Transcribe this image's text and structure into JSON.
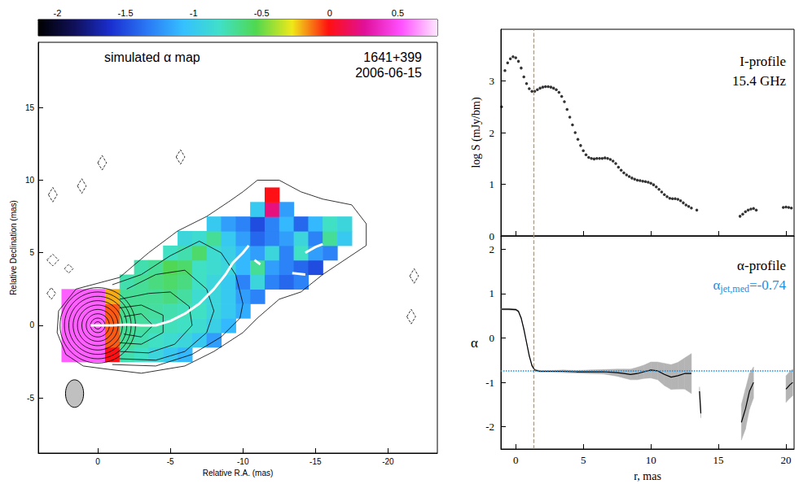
{
  "chart_data": [
    {
      "type": "map",
      "title": "simulated α map",
      "source": "1641+399",
      "date": "2006-06-15",
      "xlabel": "Relative R.A. (mas)",
      "ylabel": "Relative Declination (mas)",
      "xlim": [
        4.1,
        -23.4
      ],
      "ylim": [
        -8.8,
        19.5
      ],
      "xticks": [
        0,
        -5,
        -10,
        -15,
        -20
      ],
      "yticks": [
        -5,
        0,
        5,
        10,
        15
      ],
      "colorbar": {
        "lim": [
          -2.14,
          0.79
        ],
        "ticks": [
          -2,
          -1.5,
          -1,
          -0.5,
          0,
          0.5
        ],
        "colors": [
          "#000000",
          "#10105a",
          "#1a2fd0",
          "#2a78f5",
          "#35c0ff",
          "#40e0c8",
          "#50d850",
          "#f0e818",
          "#ff1010",
          "#e0109a",
          "#ff50ff",
          "#ffe8ff"
        ]
      },
      "cell": 1,
      "alpha_rows": [
        {
          "y": -2,
          "x": 2,
          "values": [
            0.55,
            0.55,
            0.55,
            0.0,
            -0.75,
            -0.8,
            -0.9,
            -1.0,
            -1.1
          ]
        },
        {
          "y": -1,
          "x": 2,
          "values": [
            0.55,
            0.55,
            0.55,
            -0.1,
            -0.7,
            -0.75,
            -0.8,
            -0.85,
            -0.9,
            -1.0,
            -1.2
          ]
        },
        {
          "y": 0,
          "x": 2,
          "values": [
            0.55,
            0.55,
            0.55,
            -0.1,
            -0.7,
            -0.72,
            -0.75,
            -0.78,
            -0.8,
            -0.85,
            -0.95,
            -1.1
          ]
        },
        {
          "y": 1,
          "x": 2,
          "values": [
            0.55,
            0.55,
            0.55,
            -0.1,
            -0.68,
            -0.7,
            -0.72,
            -0.75,
            -0.78,
            -0.8,
            -0.9,
            -1.0,
            -1.15
          ]
        },
        {
          "y": 2,
          "x": 2,
          "values": [
            0.55,
            0.55,
            0.55,
            -0.2,
            -0.7,
            -0.7,
            -0.7,
            -0.65,
            -0.72,
            -0.85,
            -0.9,
            -1.0,
            -1.2,
            -1.3
          ]
        },
        {
          "y": 3,
          "x": -2,
          "values": [
            -0.75,
            -0.7,
            -0.65,
            -0.6,
            -0.65,
            -0.8,
            -0.9,
            -1.0,
            -1.3,
            -0.9,
            -1.3,
            -1.4,
            -1.3
          ]
        },
        {
          "y": 4,
          "x": -3,
          "values": [
            -0.75,
            -0.7,
            -0.55,
            -0.6,
            -0.8,
            -0.85,
            -0.9,
            -1.1,
            -0.7,
            -1.2,
            -1.3,
            -1.4,
            -1.5
          ]
        },
        {
          "y": 5,
          "x": -5,
          "values": [
            -0.8,
            -0.75,
            -0.6,
            -0.85,
            -0.95,
            -1.1,
            -1.2,
            -0.9,
            -1.3,
            -0.8,
            -1.2,
            -1.3
          ]
        },
        {
          "y": 6,
          "x": -6,
          "values": [
            -0.9,
            -0.85,
            -0.7,
            -1.0,
            -1.2,
            -1.4,
            -1.3,
            -1.2,
            -0.9,
            -1.3,
            -0.7,
            -1.0
          ]
        },
        {
          "y": 7,
          "x": -8,
          "values": [
            -1.0,
            -1.2,
            -1.3,
            -1.5,
            -1.3,
            -1.1,
            -1.4,
            -1.1,
            -0.8,
            -0.9
          ]
        },
        {
          "y": 8,
          "x": -11,
          "values": [
            -1.0,
            0.2,
            -1.2
          ]
        },
        {
          "y": 9,
          "x": -12,
          "values": [
            0.0
          ]
        }
      ],
      "contours": [
        [
          [
            -0.5,
            -3
          ],
          [
            -3,
            -3.3
          ],
          [
            -6,
            -2.8
          ],
          [
            -8,
            -1.8
          ],
          [
            -10,
            -0.5
          ],
          [
            -11,
            0.5
          ],
          [
            -12.5,
            1.8
          ],
          [
            -14,
            2.3
          ],
          [
            -15.5,
            3.5
          ],
          [
            -17,
            4.5
          ],
          [
            -18.5,
            5.5
          ],
          [
            -18.5,
            7
          ],
          [
            -17.5,
            8.3
          ],
          [
            -15.5,
            8.7
          ],
          [
            -14,
            9.2
          ],
          [
            -12.5,
            10
          ],
          [
            -11,
            10
          ],
          [
            -10,
            9.2
          ],
          [
            -9,
            8.5
          ],
          [
            -7.5,
            7.5
          ],
          [
            -5.5,
            6.5
          ],
          [
            -3.5,
            5
          ],
          [
            -1.5,
            3.3
          ],
          [
            0,
            2.9
          ],
          [
            1.5,
            2.5
          ],
          [
            2.7,
            1
          ],
          [
            2.8,
            -0.5
          ],
          [
            2.2,
            -2
          ],
          [
            1,
            -2.8
          ],
          [
            -0.5,
            -3
          ]
        ],
        [
          [
            -1,
            -2.7
          ],
          [
            -4,
            -2.8
          ],
          [
            -6.5,
            -2
          ],
          [
            -8.5,
            -0.8
          ],
          [
            -9.8,
            0.5
          ],
          [
            -10,
            1.5
          ],
          [
            -9.5,
            3.5
          ],
          [
            -8.5,
            5
          ],
          [
            -7,
            5.8
          ],
          [
            -5,
            4.8
          ],
          [
            -3,
            3.5
          ],
          [
            -1,
            2.8
          ]
        ],
        [
          [
            -1.5,
            -2.3
          ],
          [
            -4,
            -2.4
          ],
          [
            -6,
            -1.8
          ],
          [
            -7.5,
            -0.5
          ],
          [
            -8,
            1
          ],
          [
            -7.5,
            2.5
          ],
          [
            -6,
            3.8
          ],
          [
            -4,
            3.5
          ],
          [
            -2,
            2.5
          ]
        ],
        [
          [
            -1.5,
            -1.8
          ],
          [
            -3.5,
            -1.9
          ],
          [
            -5.3,
            -1.3
          ],
          [
            -6.5,
            0
          ],
          [
            -6.3,
            1.3
          ],
          [
            -5,
            2.3
          ],
          [
            -3.5,
            2.2
          ],
          [
            -1.5,
            1.8
          ]
        ],
        [
          [
            -1.5,
            -1.2
          ],
          [
            -3,
            -1.3
          ],
          [
            -4.5,
            -0.5
          ],
          [
            -4.5,
            0.7
          ],
          [
            -3,
            1.4
          ],
          [
            -1.5,
            1.2
          ]
        ],
        [
          [
            -1.8,
            -0.6
          ],
          [
            -3,
            -0.8
          ],
          [
            -3.8,
            0
          ],
          [
            -3,
            0.8
          ],
          [
            -1.8,
            0.6
          ]
        ]
      ],
      "core_center": [
        0,
        0
      ],
      "core_contour_radii": [
        2.6,
        2.3,
        2.0,
        1.7,
        1.4,
        1.1,
        0.8,
        0.5,
        0.25
      ],
      "negative_contours": [
        [
          [
            3.5,
            4.5
          ],
          [
            3.1,
            4.9
          ],
          [
            2.7,
            4.5
          ],
          [
            3.1,
            4.1
          ],
          [
            3.5,
            4.5
          ]
        ],
        [
          [
            2.3,
            3.9
          ],
          [
            2.0,
            4.2
          ],
          [
            1.7,
            3.9
          ],
          [
            2.0,
            3.6
          ],
          [
            2.3,
            3.9
          ]
        ],
        [
          [
            3.5,
            2.2
          ],
          [
            3.2,
            2.6
          ],
          [
            2.9,
            2.2
          ],
          [
            3.2,
            1.8
          ],
          [
            3.5,
            2.2
          ]
        ],
        [
          [
            3.4,
            9
          ],
          [
            3.1,
            9.5
          ],
          [
            2.8,
            9
          ],
          [
            3.1,
            8.5
          ],
          [
            3.4,
            9
          ]
        ],
        [
          [
            1.4,
            9.6
          ],
          [
            1.1,
            10.1
          ],
          [
            0.8,
            9.6
          ],
          [
            1.1,
            9.1
          ],
          [
            1.4,
            9.6
          ]
        ],
        [
          [
            0,
            11.2
          ],
          [
            -0.3,
            11.7
          ],
          [
            -0.6,
            11.2
          ],
          [
            -0.3,
            10.7
          ],
          [
            0,
            11.2
          ]
        ],
        [
          [
            -5.4,
            11.6
          ],
          [
            -5.7,
            12.1
          ],
          [
            -6,
            11.6
          ],
          [
            -5.7,
            11.1
          ],
          [
            -5.4,
            11.6
          ]
        ],
        [
          [
            -21.5,
            3.4
          ],
          [
            -21.8,
            3.9
          ],
          [
            -22.1,
            3.4
          ],
          [
            -21.8,
            2.9
          ],
          [
            -21.5,
            3.4
          ]
        ],
        [
          [
            -21.3,
            0.6
          ],
          [
            -21.6,
            1.1
          ],
          [
            -21.9,
            0.6
          ],
          [
            -21.6,
            0.1
          ],
          [
            -21.3,
            0.6
          ]
        ]
      ],
      "ridge": {
        "color": "#ffffff",
        "segments": [
          [
            [
              0.5,
              0
            ],
            [
              -1,
              0
            ],
            [
              -2,
              0.05
            ],
            [
              -3,
              0
            ],
            [
              -4,
              0
            ],
            [
              -5,
              0.3
            ],
            [
              -6,
              0.8
            ],
            [
              -7,
              1.5
            ],
            [
              -8,
              2.5
            ],
            [
              -8.8,
              3.5
            ],
            [
              -9.3,
              4.3
            ],
            [
              -10,
              5
            ],
            [
              -10.4,
              5.5
            ]
          ],
          [
            [
              -10.8,
              4.5
            ],
            [
              -11.2,
              4.2
            ]
          ],
          [
            [
              -13.4,
              3.6
            ],
            [
              -14.3,
              3.5
            ]
          ],
          [
            [
              -14.3,
              5
            ],
            [
              -15,
              5.4
            ],
            [
              -15.5,
              5.6
            ]
          ]
        ]
      },
      "beam": {
        "x": 1.6,
        "y": -4.7,
        "width": 1.25,
        "height": 1.9,
        "color": "#c0c0c0"
      }
    },
    {
      "type": "scatter",
      "title": "I-profile",
      "subtitle": "15.4 GHz",
      "ylabel": "log S (mJy/bm)",
      "xlim": [
        -1.1,
        20.6
      ],
      "ylim": [
        0,
        4.0
      ],
      "xticks": [
        0,
        5,
        10,
        15,
        20
      ],
      "yticks": [
        0,
        1,
        2,
        3
      ],
      "tick_labels": "y",
      "core_edge_r": 1.3,
      "color": "#000000",
      "x": [
        -1.05,
        -0.8,
        -0.6,
        -0.4,
        -0.2,
        0,
        0.2,
        0.4,
        0.6,
        0.8,
        1,
        1.2,
        1.4,
        1.6,
        1.8,
        2,
        2.2,
        2.4,
        2.6,
        2.8,
        3,
        3.2,
        3.4,
        3.6,
        3.8,
        4,
        4.2,
        4.4,
        4.6,
        4.8,
        5,
        5.2,
        5.4,
        5.6,
        5.8,
        6,
        6.2,
        6.4,
        6.6,
        6.8,
        7,
        7.2,
        7.4,
        7.6,
        7.8,
        8,
        8.2,
        8.4,
        8.6,
        8.8,
        9,
        9.2,
        9.4,
        9.6,
        9.8,
        10,
        10.2,
        10.4,
        10.6,
        10.8,
        11,
        11.2,
        11.4,
        11.6,
        11.8,
        12,
        12.2,
        12.4,
        12.6,
        12.8,
        13,
        13.4,
        16.6,
        16.8,
        17,
        17.2,
        17.4,
        17.6,
        17.8,
        19.8,
        20,
        20.2,
        20.4
      ],
      "values": [
        2.5,
        3.2,
        3.35,
        3.43,
        3.47,
        3.45,
        3.38,
        3.25,
        3.08,
        2.95,
        2.85,
        2.8,
        2.8,
        2.83,
        2.86,
        2.88,
        2.89,
        2.89,
        2.88,
        2.86,
        2.83,
        2.78,
        2.7,
        2.6,
        2.45,
        2.3,
        2.15,
        2.0,
        1.87,
        1.75,
        1.65,
        1.57,
        1.52,
        1.5,
        1.49,
        1.5,
        1.5,
        1.5,
        1.51,
        1.5,
        1.48,
        1.45,
        1.4,
        1.33,
        1.27,
        1.22,
        1.18,
        1.15,
        1.12,
        1.1,
        1.08,
        1.07,
        1.06,
        1.05,
        1.04,
        1.02,
        0.99,
        0.95,
        0.9,
        0.85,
        0.8,
        0.76,
        0.73,
        0.72,
        0.72,
        0.71,
        0.68,
        0.64,
        0.6,
        0.57,
        0.54,
        0.5,
        0.38,
        0.42,
        0.47,
        0.5,
        0.52,
        0.53,
        0.5,
        0.55,
        0.56,
        0.55,
        0.54
      ]
    },
    {
      "type": "line",
      "title": "α-profile",
      "xlabel": "r, mas",
      "ylabel": "α",
      "xlim": [
        -1.1,
        20.6
      ],
      "ylim": [
        -2.5,
        2.3
      ],
      "xticks": [
        0,
        5,
        10,
        15,
        20
      ],
      "yticks": [
        -2,
        -1,
        0,
        1,
        2
      ],
      "core_edge_r": 1.3,
      "median": {
        "value": -0.74,
        "label": [
          "α",
          "jet,med",
          "=-0.74"
        ],
        "color": "#1a8fe0"
      },
      "color": "#000000",
      "x": [
        -1.05,
        -0.5,
        0,
        0.2,
        0.4,
        0.6,
        0.8,
        1,
        1.2,
        1.4,
        1.8,
        2.5,
        3.5,
        4.5,
        5.5,
        6.5,
        7.5,
        8,
        8.5,
        9,
        9.5,
        10,
        10.5,
        11,
        11.5,
        12,
        12.5,
        13,
        13.3,
        13.6,
        13.7,
        15,
        16.7,
        17,
        17.3,
        17.6,
        19,
        20,
        20.3,
        20.5
      ],
      "values": [
        0.65,
        0.65,
        0.64,
        0.6,
        0.45,
        0.2,
        -0.1,
        -0.4,
        -0.62,
        -0.72,
        -0.75,
        -0.75,
        -0.75,
        -0.76,
        -0.76,
        -0.76,
        -0.78,
        -0.8,
        -0.82,
        -0.8,
        -0.76,
        -0.72,
        -0.74,
        -0.82,
        -0.88,
        -0.85,
        -0.8,
        -0.8,
        null,
        -1.2,
        -1.7,
        null,
        -1.9,
        -1.6,
        -1.2,
        -1.0,
        null,
        -1.15,
        -1.05,
        -1.0
      ],
      "errors": [
        0.02,
        0.02,
        0.02,
        0.02,
        0.02,
        0.02,
        0.02,
        0.02,
        0.02,
        0.02,
        0.02,
        0.02,
        0.03,
        0.03,
        0.04,
        0.05,
        0.08,
        0.1,
        0.12,
        0.14,
        0.15,
        0.18,
        0.2,
        0.25,
        0.28,
        0.3,
        0.35,
        0.45,
        null,
        0.1,
        0.1,
        null,
        0.4,
        0.45,
        0.4,
        0.35,
        null,
        0.3,
        0.3,
        0.3
      ]
    }
  ]
}
